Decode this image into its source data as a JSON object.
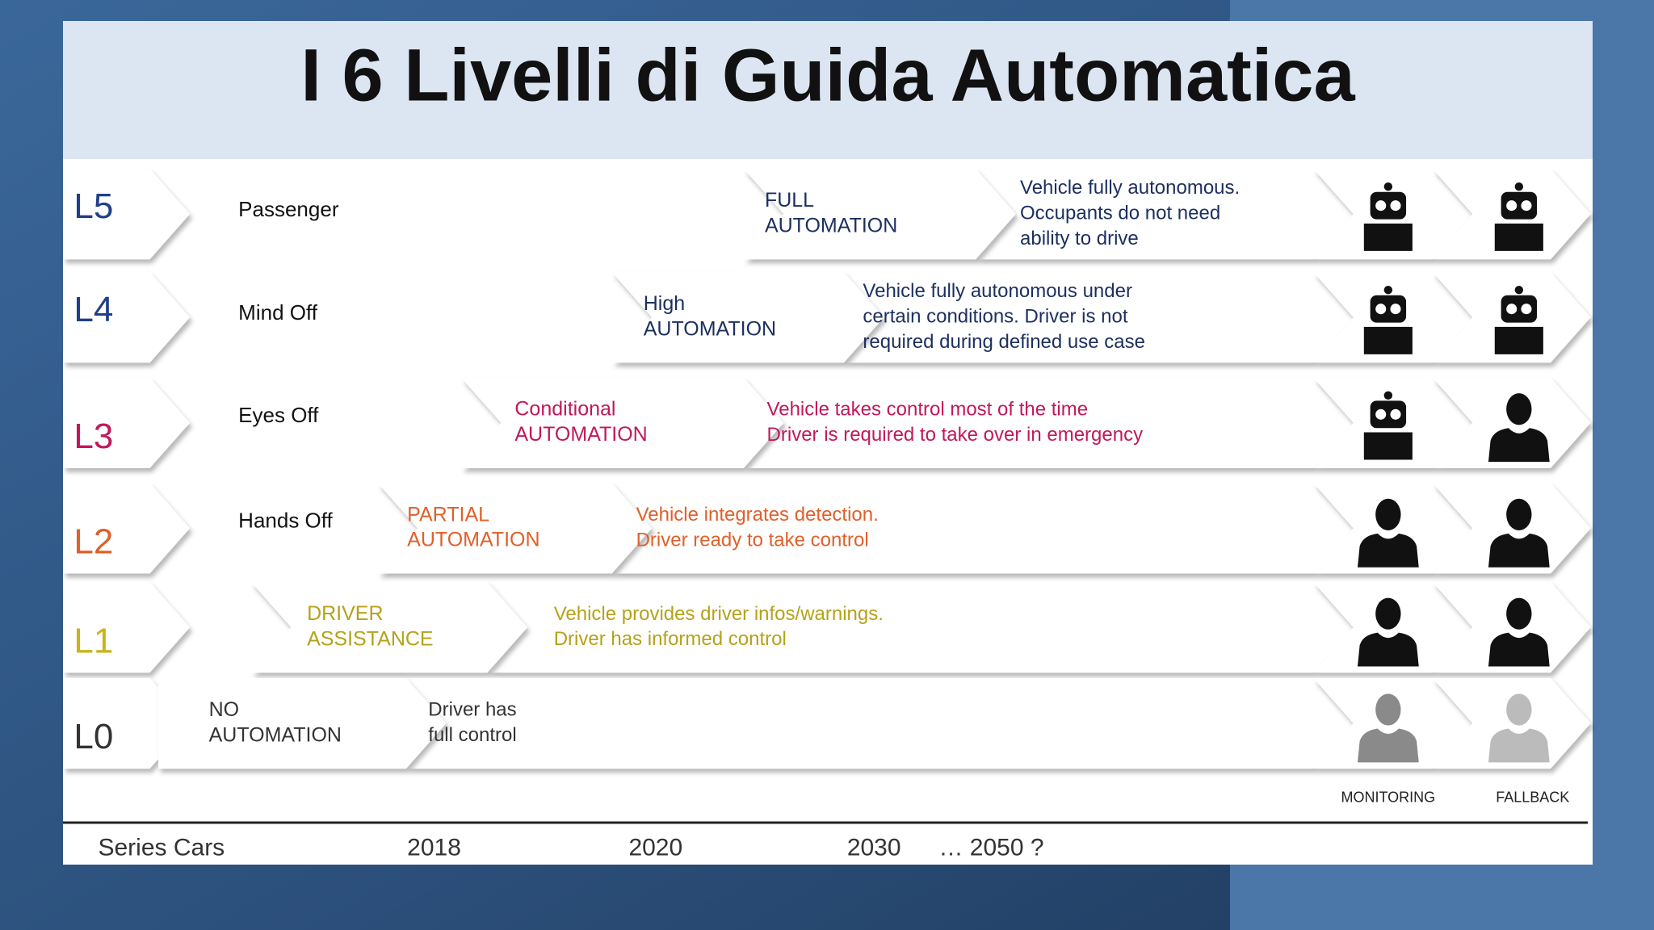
{
  "title": "I 6 Livelli di Guida Automatica",
  "levels": [
    {
      "code": "L5",
      "name": "Passenger",
      "category": [
        "FULL",
        "AUTOMATION"
      ],
      "description": [
        "Vehicle fully autonomous.",
        "Occupants do not need",
        "ability to drive"
      ],
      "color": "#1f3f8a",
      "text_color": "#1c2f5e"
    },
    {
      "code": "L4",
      "name": "Mind Off",
      "category": [
        "High",
        "AUTOMATION"
      ],
      "description": [
        "Vehicle fully autonomous under",
        "certain conditions. Driver is not",
        "required during defined use case"
      ],
      "color": "#1f3f8a",
      "text_color": "#1c2f5e"
    },
    {
      "code": "L3",
      "name": "Eyes Off",
      "category": [
        "Conditional",
        "AUTOMATION"
      ],
      "description": [
        "Vehicle takes control most of the time",
        "Driver is required to take over in emergency"
      ],
      "color": "#c2185b",
      "text_color": "#c2185b"
    },
    {
      "code": "L2",
      "name": "Hands Off",
      "category": [
        "PARTIAL",
        "AUTOMATION"
      ],
      "description": [
        "Vehicle integrates detection.",
        "Driver ready to take control"
      ],
      "color": "#e0602a",
      "text_color": "#e0602a"
    },
    {
      "code": "L1",
      "category": [
        "DRIVER",
        "ASSISTANCE"
      ],
      "description": [
        "Vehicle provides driver infos/warnings.",
        "Driver has informed control"
      ],
      "color": "#c8b41a",
      "text_color": "#b5a21a"
    },
    {
      "code": "L0",
      "category": [
        "NO",
        "AUTOMATION"
      ],
      "description": [
        "Driver has",
        "full control"
      ],
      "color": "#333333",
      "text_color": "#333333"
    }
  ],
  "columns": [
    "MONITORING",
    "FALLBACK"
  ],
  "timeline": [
    "Series Cars",
    "2018",
    "2020",
    "2030",
    "…  2050 ?"
  ]
}
